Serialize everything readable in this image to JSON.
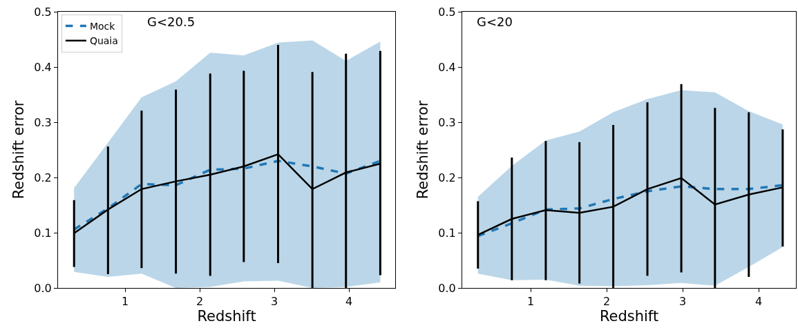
{
  "chart_data": [
    {
      "type": "line",
      "annotations": [
        "G<20.5"
      ],
      "xlabel": "Redshift",
      "ylabel": "Redshift error",
      "xlim": [
        0.1,
        4.62
      ],
      "xticks": [
        1,
        2,
        3,
        4
      ],
      "ylim": [
        0,
        0.5
      ],
      "yticks": [
        {
          "value": 0,
          "label": "0.0"
        },
        {
          "value": 0.1,
          "label": "0.1"
        },
        {
          "value": 0.2,
          "label": "0.2"
        },
        {
          "value": 0.3,
          "label": "0.3"
        },
        {
          "value": 0.4,
          "label": "0.4"
        },
        {
          "value": 0.5,
          "label": "0.5"
        }
      ],
      "grid": false,
      "legend": "top left",
      "series": [
        {
          "name": "Mock",
          "color": "#1f77b4",
          "line_style": "dashed",
          "x": [
            0.315,
            0.77,
            1.22,
            1.68,
            2.14,
            2.59,
            3.05,
            3.51,
            3.96,
            4.42
          ],
          "values": [
            0.106,
            0.144,
            0.188,
            0.186,
            0.214,
            0.216,
            0.23,
            0.22,
            0.207,
            0.23
          ],
          "lower": [
            0.029,
            0.02,
            0.026,
            0.0,
            0.002,
            0.012,
            0.013,
            0.0,
            0.002,
            0.01
          ],
          "upper": [
            0.181,
            0.263,
            0.345,
            0.374,
            0.426,
            0.421,
            0.444,
            0.448,
            0.411,
            0.446
          ]
        },
        {
          "name": "Quaia",
          "color": "#000000",
          "line_style": "solid",
          "x": [
            0.315,
            0.77,
            1.22,
            1.68,
            2.14,
            2.59,
            3.05,
            3.51,
            3.96,
            4.42
          ],
          "values": [
            0.099,
            0.142,
            0.179,
            0.193,
            0.205,
            0.22,
            0.242,
            0.179,
            0.209,
            0.225
          ],
          "errors": [
            [
              0.038,
              0.159
            ],
            [
              0.025,
              0.256
            ],
            [
              0.036,
              0.321
            ],
            [
              0.026,
              0.359
            ],
            [
              0.022,
              0.388
            ],
            [
              0.047,
              0.393
            ],
            [
              0.045,
              0.44
            ],
            [
              0.0,
              0.391
            ],
            [
              0.0,
              0.424
            ],
            [
              0.023,
              0.429
            ]
          ]
        }
      ]
    },
    {
      "type": "line",
      "annotations": [
        "G<20"
      ],
      "xlabel": "Redshift",
      "ylabel": "Redshift error",
      "xlim": [
        0.1,
        4.49
      ],
      "xticks": [
        1,
        2,
        3,
        4
      ],
      "ylim": [
        0,
        0.5
      ],
      "yticks": [
        {
          "value": 0,
          "label": "0.0"
        },
        {
          "value": 0.1,
          "label": "0.1"
        },
        {
          "value": 0.2,
          "label": "0.2"
        },
        {
          "value": 0.3,
          "label": "0.3"
        },
        {
          "value": 0.4,
          "label": "0.4"
        },
        {
          "value": 0.5,
          "label": "0.5"
        }
      ],
      "grid": false,
      "legend": false,
      "series": [
        {
          "color": "#1f77b4",
          "line_style": "dashed",
          "x": [
            0.307,
            0.753,
            1.199,
            1.642,
            2.087,
            2.536,
            2.982,
            3.425,
            3.87,
            4.316
          ],
          "values": [
            0.094,
            0.117,
            0.142,
            0.144,
            0.161,
            0.175,
            0.184,
            0.179,
            0.179,
            0.186
          ],
          "lower": [
            0.026,
            0.014,
            0.015,
            0.004,
            0.003,
            0.005,
            0.009,
            0.004,
            0.038,
            0.074
          ],
          "upper": [
            0.165,
            0.221,
            0.267,
            0.283,
            0.318,
            0.342,
            0.358,
            0.354,
            0.32,
            0.296
          ]
        },
        {
          "color": "#000000",
          "line_style": "solid",
          "x": [
            0.307,
            0.753,
            1.199,
            1.642,
            2.087,
            2.536,
            2.982,
            3.425,
            3.87,
            4.316
          ],
          "values": [
            0.096,
            0.125,
            0.141,
            0.136,
            0.147,
            0.179,
            0.199,
            0.151,
            0.169,
            0.182
          ],
          "errors": [
            [
              0.035,
              0.157
            ],
            [
              0.014,
              0.236
            ],
            [
              0.014,
              0.266
            ],
            [
              0.008,
              0.264
            ],
            [
              0.0,
              0.295
            ],
            [
              0.022,
              0.336
            ],
            [
              0.028,
              0.369
            ],
            [
              0.0,
              0.326
            ],
            [
              0.02,
              0.318
            ],
            [
              0.075,
              0.287
            ]
          ]
        }
      ]
    }
  ]
}
